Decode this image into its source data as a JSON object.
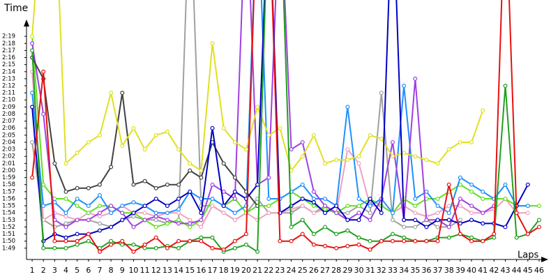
{
  "chart_data": {
    "type": "line",
    "y_label": "Time",
    "x_label": "Laps",
    "xlim": [
      0.5,
      46.5
    ],
    "ylim": [
      107.4,
      140.2
    ],
    "x": [
      1,
      2,
      3,
      4,
      5,
      6,
      7,
      8,
      9,
      10,
      11,
      12,
      13,
      14,
      15,
      16,
      17,
      18,
      19,
      20,
      21,
      22,
      23,
      24,
      25,
      26,
      27,
      28,
      29,
      30,
      31,
      32,
      33,
      34,
      35,
      36,
      37,
      38,
      39,
      40,
      41,
      42,
      43,
      44,
      45,
      46
    ],
    "xticks": [
      1,
      2,
      3,
      4,
      5,
      6,
      7,
      8,
      9,
      10,
      11,
      12,
      13,
      14,
      15,
      16,
      17,
      18,
      19,
      20,
      21,
      22,
      23,
      24,
      25,
      26,
      27,
      28,
      29,
      30,
      31,
      32,
      33,
      34,
      35,
      36,
      37,
      38,
      39,
      40,
      41,
      42,
      43,
      44,
      45,
      46
    ],
    "yticks": [
      {
        "value": 109,
        "label": "1:49"
      },
      {
        "value": 110,
        "label": "1:50"
      },
      {
        "value": 111,
        "label": "1:51"
      },
      {
        "value": 112,
        "label": "1:52"
      },
      {
        "value": 113,
        "label": "1:53"
      },
      {
        "value": 114,
        "label": "1:54"
      },
      {
        "value": 115,
        "label": "1:55"
      },
      {
        "value": 116,
        "label": "1:56"
      },
      {
        "value": 117,
        "label": "1:57"
      },
      {
        "value": 118,
        "label": "1:58"
      },
      {
        "value": 119,
        "label": "1:59"
      },
      {
        "value": 120,
        "label": "2:00"
      },
      {
        "value": 121,
        "label": "2:01"
      },
      {
        "value": 122,
        "label": "2:02"
      },
      {
        "value": 123,
        "label": "2:03"
      },
      {
        "value": 124,
        "label": "2:04"
      },
      {
        "value": 125,
        "label": "2:05"
      },
      {
        "value": 126,
        "label": "2:06"
      },
      {
        "value": 127,
        "label": "2:07"
      },
      {
        "value": 128,
        "label": "2:08"
      },
      {
        "value": 129,
        "label": "2:09"
      },
      {
        "value": 130,
        "label": "2:10"
      },
      {
        "value": 131,
        "label": "2:11"
      },
      {
        "value": 132,
        "label": "2:12"
      },
      {
        "value": 133,
        "label": "2:13"
      },
      {
        "value": 134,
        "label": "2:14"
      },
      {
        "value": 135,
        "label": "2:15"
      },
      {
        "value": 136,
        "label": "2:16"
      },
      {
        "value": 137,
        "label": "2:17"
      },
      {
        "value": 138,
        "label": "2:18"
      },
      {
        "value": 139,
        "label": "2:19"
      }
    ],
    "series": [
      {
        "color": "#a0a0a0",
        "values": [
          124,
          113,
          112,
          112.5,
          113,
          113,
          112.5,
          112,
          113,
          113.5,
          113,
          113,
          112.5,
          113,
          160,
          115,
          115,
          114,
          113,
          114,
          116,
          114,
          114,
          114,
          115,
          114,
          115,
          114,
          114,
          115,
          114,
          131,
          113,
          112,
          112,
          113,
          112,
          112,
          113,
          null,
          null,
          null,
          null,
          null,
          null,
          null
        ]
      },
      {
        "color": "#f0a0c0",
        "values": [
          134,
          113,
          114,
          113.5,
          113,
          114,
          113.5,
          114,
          115,
          114,
          114,
          113.5,
          114,
          114,
          113,
          112,
          115,
          114,
          113,
          114,
          113,
          114,
          114,
          114.5,
          115,
          114,
          114.5,
          114,
          123,
          121,
          115,
          115,
          114,
          115,
          114,
          113.5,
          114,
          115,
          115,
          114,
          114,
          114.5,
          116,
          114,
          114,
          null
        ]
      },
      {
        "color": "#60e020",
        "values": [
          139,
          118,
          116,
          116,
          115,
          114,
          115,
          115,
          114,
          114,
          113,
          112,
          112.5,
          113,
          112,
          113,
          116,
          115,
          116,
          114,
          115,
          115,
          116,
          117,
          116,
          115,
          114.5,
          114,
          115,
          115,
          116,
          115,
          114,
          116,
          115,
          116,
          116,
          117,
          118,
          117,
          116,
          116,
          116,
          115,
          115,
          115
        ]
      },
      {
        "color": "#1e90ff",
        "values": [
          131,
          115,
          115.5,
          114,
          116,
          115,
          116.5,
          114,
          115,
          115.5,
          115,
          114,
          114,
          114.5,
          117,
          116,
          116,
          115,
          114,
          115,
          160,
          116,
          116,
          117,
          118,
          116,
          116,
          115,
          129,
          116,
          115,
          116,
          114,
          132,
          116,
          117,
          115,
          114,
          119,
          118,
          117,
          116,
          118,
          115,
          115,
          null
        ]
      },
      {
        "color": "#a040e0",
        "values": [
          138,
          128,
          113,
          112,
          113,
          113,
          114,
          115,
          114,
          112,
          113,
          113.5,
          113,
          112.5,
          112.5,
          113,
          118,
          117,
          116,
          160,
          118,
          119,
          160,
          123,
          124,
          117,
          115,
          114,
          113,
          114,
          113,
          116,
          124,
          113,
          133,
          113,
          113,
          112,
          116,
          115,
          114,
          115,
          null,
          null,
          null,
          null
        ]
      },
      {
        "color": "#404040",
        "values": [
          136,
          133,
          121,
          117,
          117.5,
          117.5,
          118,
          120.5,
          131,
          118,
          118.5,
          117.5,
          118,
          118,
          120,
          119,
          124,
          121,
          119,
          117,
          115,
          null,
          null,
          null,
          null,
          null,
          null,
          null,
          null,
          null,
          null,
          null,
          null,
          null,
          null,
          null,
          null,
          null,
          null,
          null,
          null,
          null,
          null,
          null,
          null,
          null
        ]
      },
      {
        "color": "#e0e020",
        "values": [
          139,
          160,
          160,
          121,
          122.5,
          124,
          125,
          131,
          123.5,
          126,
          123,
          125,
          125.5,
          123,
          121,
          120,
          138,
          126,
          124,
          123,
          129,
          125,
          126,
          120,
          122,
          125,
          121,
          121.5,
          121.5,
          122,
          125,
          124.5,
          122,
          122.5,
          122,
          121.5,
          121,
          123,
          124,
          124,
          128.5,
          null,
          null,
          null,
          null,
          null
        ]
      },
      {
        "color": "#0000c0",
        "values": [
          129,
          110,
          111,
          110.5,
          111,
          111,
          111.5,
          112,
          113,
          114,
          115,
          116,
          115,
          116,
          117,
          114,
          126,
          115,
          117,
          116,
          118,
          160,
          114,
          115,
          116,
          115.5,
          114,
          115,
          113,
          113,
          116,
          114,
          160,
          113,
          113,
          112,
          113,
          113,
          112.5,
          113,
          112.5,
          112.5,
          112,
          115,
          118,
          null
        ]
      },
      {
        "color": "#20a020",
        "values": [
          137,
          109,
          109,
          109,
          109.5,
          110,
          109,
          110,
          109.5,
          109.5,
          109,
          109,
          109.3,
          109,
          110,
          110.5,
          110.5,
          108.5,
          109,
          109.5,
          108.5,
          160,
          160,
          112,
          113,
          111,
          112,
          111,
          111.5,
          110.5,
          110,
          110,
          111,
          110.5,
          110,
          110,
          110.5,
          110.5,
          111,
          110.5,
          110,
          110.5,
          132,
          110.5,
          111,
          113
        ]
      },
      {
        "color": "#e81010",
        "values": [
          119,
          134,
          110,
          110,
          110,
          111,
          108.5,
          109.5,
          110,
          108.5,
          109.5,
          110.5,
          109,
          110,
          110,
          110,
          109,
          108.8,
          110,
          111,
          160,
          160,
          110,
          110,
          111,
          109.5,
          109.3,
          109,
          109.3,
          109.5,
          108.8,
          110,
          110,
          110,
          110,
          110,
          110,
          118,
          111,
          110,
          110,
          111,
          160,
          114,
          111,
          112
        ]
      }
    ]
  }
}
